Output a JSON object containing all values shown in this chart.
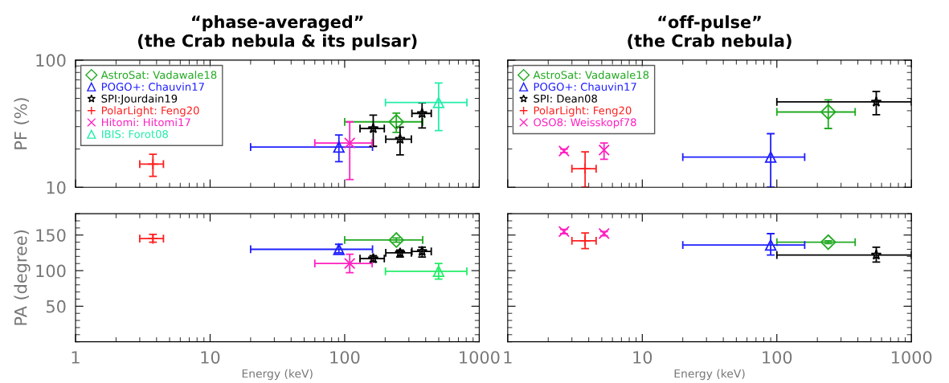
{
  "chart_data": [
    {
      "type": "scatter",
      "title": "“phase-averaged”\n(the Crab nebula & its pulsar)",
      "ylabel": "PF (%)",
      "log": "xy",
      "xlim": [
        1,
        1000
      ],
      "xticks": [
        1,
        10,
        100,
        1000
      ],
      "ylim": [
        10,
        100
      ],
      "yticks": [
        10,
        100
      ],
      "tick_labels": "y",
      "legend": "top left",
      "grid": false,
      "series": [
        {
          "name": "AstroSat: Vadawale18",
          "color": "#22aa22",
          "marker": "diamond",
          "x": [
            242
          ],
          "values": [
            32.7
          ],
          "xerrors": [
            [
              100,
              380
            ]
          ],
          "errors": [
            [
              27,
              38.3
            ]
          ]
        },
        {
          "name": "POGO+: Chauvin17",
          "color": "#1f1fff",
          "marker": "triangle",
          "x": [
            90.6
          ],
          "values": [
            20.7
          ],
          "xerrors": [
            [
              20,
              161
            ]
          ],
          "errors": [
            [
              15.9,
              25.8
            ]
          ]
        },
        {
          "name": "SPI:Jourdain19",
          "color": "#000000",
          "marker": "star",
          "x": [
            163,
            258,
            376
          ],
          "values": [
            29,
            23.9,
            38.1
          ],
          "xerrors": [
            [
              130,
              197
            ],
            [
              202,
              313
            ],
            [
              316,
              440
            ]
          ],
          "errors": [
            [
              21,
              36.9
            ],
            [
              18,
              29.7
            ],
            [
              29.3,
              46.1
            ]
          ]
        },
        {
          "name": "PolarLight: Feng20",
          "color": "#ff2020",
          "x": [
            3.76
          ],
          "values": [
            15.2
          ],
          "xerrors": [
            [
              3.0,
              4.5
            ]
          ],
          "errors": [
            [
              12.2,
              18.2
            ]
          ]
        },
        {
          "name": "Hitomi: Hitomi17",
          "color": "#ff20c0",
          "marker": "cross",
          "x": [
            109
          ],
          "values": [
            22.3
          ],
          "xerrors": [
            [
              60,
              160
            ]
          ],
          "errors": [
            [
              11.5,
              32.7
            ]
          ]
        },
        {
          "name": "IBIS: Forot08",
          "color": "#22eeaa",
          "marker": "triangle",
          "x": [
            499
          ],
          "values": [
            46.4
          ],
          "xerrors": [
            [
              201,
              809
            ]
          ],
          "errors": [
            [
              27.9,
              66
            ]
          ]
        }
      ]
    },
    {
      "type": "scatter",
      "title": "“off-pulse”\n(the Crab nebula)",
      "log": "xy",
      "xlim": [
        1,
        1000
      ],
      "xticks": [
        1,
        10,
        100,
        1000
      ],
      "ylim": [
        10,
        100
      ],
      "yticks": [
        10,
        100
      ],
      "tick_labels": false,
      "legend": "top left",
      "grid": false,
      "series": [
        {
          "name": "AstroSat: Vadawale18",
          "color": "#22aa22",
          "marker": "diamond",
          "x": [
            241
          ],
          "values": [
            39.1
          ],
          "xerrors": [
            [
              100,
              382
            ]
          ],
          "errors": [
            [
              29,
              48.7
            ]
          ]
        },
        {
          "name": "POGO+: Chauvin17",
          "color": "#1f1fff",
          "marker": "triangle",
          "x": [
            90
          ],
          "values": [
            17.3
          ],
          "xerrors": [
            [
              20,
              161
            ]
          ],
          "errors": [
            [
              10,
              26.4
            ]
          ]
        },
        {
          "name": "SPI: Dean08",
          "color": "#000000",
          "marker": "star",
          "x": [
            548
          ],
          "values": [
            46.9
          ],
          "xerrors": [
            [
              100,
              1000
            ]
          ],
          "errors": [
            [
              37.2,
              56.8
            ]
          ]
        },
        {
          "name": "PolarLight: Feng20",
          "color": "#ff2020",
          "x": [
            3.76
          ],
          "values": [
            14.0
          ],
          "xerrors": [
            [
              3.0,
              4.54
            ]
          ],
          "errors": [
            [
              10,
              19
            ]
          ]
        },
        {
          "name": "OSO8: Weisskopf78",
          "color": "#ff20c0",
          "marker": "cross",
          "x": [
            2.62,
            5.2
          ],
          "values": [
            19.3,
            19.6
          ],
          "xerrors": [
            null,
            null
          ],
          "errors": [
            [
              18.7,
              20
            ],
            [
              16.6,
              22.3
            ]
          ]
        }
      ]
    },
    {
      "type": "scatter",
      "xlabel": "Energy (keV)",
      "ylabel": "PA (degree)",
      "log": "x",
      "xlim": [
        1,
        1000
      ],
      "xticks": [
        1,
        10,
        100,
        1000
      ],
      "ylim": [
        0,
        180
      ],
      "yticks": [
        50,
        100,
        150
      ],
      "grid": false,
      "series": [
        {
          "color": "#22aa22",
          "marker": "diamond",
          "x": [
            242
          ],
          "values": [
            143
          ],
          "xerrors": [
            [
              100,
              380
            ]
          ],
          "errors": [
            [
              140,
              146
            ]
          ]
        },
        {
          "color": "#1f1fff",
          "marker": "triangle",
          "x": [
            90.6
          ],
          "values": [
            130
          ],
          "xerrors": [
            [
              20,
              161
            ]
          ],
          "errors": [
            [
              125,
              137
            ]
          ]
        },
        {
          "color": "#000000",
          "marker": "star",
          "x": [
            163,
            258,
            376
          ],
          "values": [
            117,
            125,
            127
          ],
          "xerrors": [
            [
              130,
              197
            ],
            [
              202,
              313
            ],
            [
              316,
              440
            ]
          ],
          "errors": [
            [
              112,
              121
            ],
            [
              119,
              129
            ],
            [
              119,
              133
            ]
          ]
        },
        {
          "color": "#ff2020",
          "x": [
            3.76
          ],
          "values": [
            145
          ],
          "xerrors": [
            [
              3.0,
              4.5
            ]
          ],
          "errors": [
            [
              140,
              151
            ]
          ]
        },
        {
          "color": "#ff20c0",
          "marker": "cross",
          "x": [
            109
          ],
          "values": [
            110
          ],
          "xerrors": [
            [
              60,
              160
            ]
          ],
          "errors": [
            [
              97,
              123
            ]
          ]
        },
        {
          "color": "#22ee66",
          "marker": "triangle",
          "x": [
            499
          ],
          "values": [
            99
          ],
          "xerrors": [
            [
              201,
              809
            ]
          ],
          "errors": [
            [
              88,
              110
            ]
          ]
        }
      ]
    },
    {
      "type": "scatter",
      "xlabel": "Energy (keV)",
      "log": "x",
      "xlim": [
        1,
        1000
      ],
      "xticks": [
        1,
        10,
        100,
        1000
      ],
      "ylim": [
        0,
        180
      ],
      "yticks": [
        50,
        100,
        150
      ],
      "tick_labels": "x",
      "grid": false,
      "series": [
        {
          "color": "#22aa22",
          "marker": "diamond",
          "x": [
            241
          ],
          "values": [
            140
          ],
          "xerrors": [
            [
              100,
              382
            ]
          ],
          "errors": [
            [
              138,
              142
            ]
          ]
        },
        {
          "color": "#1f1fff",
          "marker": "triangle",
          "x": [
            90
          ],
          "values": [
            136
          ],
          "xerrors": [
            [
              20,
              161
            ]
          ],
          "errors": [
            [
              122,
              152
            ]
          ]
        },
        {
          "color": "#000000",
          "marker": "star",
          "x": [
            548
          ],
          "values": [
            122
          ],
          "xerrors": [
            [
              100,
              1000
            ]
          ],
          "errors": [
            [
              112,
              133
            ]
          ]
        },
        {
          "color": "#ff2020",
          "x": [
            3.76
          ],
          "values": [
            142
          ],
          "xerrors": [
            [
              3.0,
              4.54
            ]
          ],
          "errors": [
            [
              131,
              153
            ]
          ]
        },
        {
          "color": "#ff20c0",
          "marker": "cross",
          "x": [
            2.62,
            5.2
          ],
          "values": [
            155,
            152
          ],
          "xerrors": [
            null,
            null
          ],
          "errors": [
            [
              152,
              158
            ],
            [
              149,
              155
            ]
          ]
        }
      ]
    }
  ]
}
